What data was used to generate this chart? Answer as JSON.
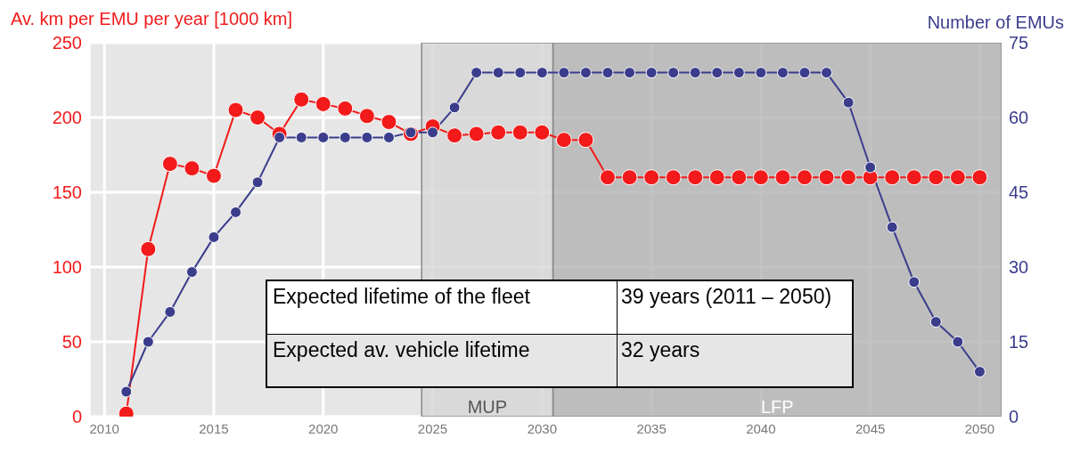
{
  "chart_data": {
    "type": "line",
    "ylabel": "Av. km per EMU per year [1000 km]",
    "y2label": "Number of EMUs",
    "x": [
      2011,
      2012,
      2013,
      2014,
      2015,
      2016,
      2017,
      2018,
      2019,
      2020,
      2021,
      2022,
      2023,
      2024,
      2025,
      2026,
      2027,
      2028,
      2029,
      2030,
      2031,
      2032,
      2033,
      2034,
      2035,
      2036,
      2037,
      2038,
      2039,
      2040,
      2041,
      2042,
      2043,
      2044,
      2045,
      2046,
      2047,
      2048,
      2049,
      2050
    ],
    "series": [
      {
        "color": "#f21a1a",
        "values": [
          2,
          112,
          169,
          166,
          161,
          205,
          200,
          189,
          212,
          209,
          206,
          201,
          197,
          189,
          194,
          188,
          189,
          190,
          190,
          190,
          185,
          185,
          160,
          160,
          160,
          160,
          160,
          160,
          160,
          160,
          160,
          160,
          160,
          160,
          160,
          160,
          160,
          160,
          160,
          160
        ]
      },
      {
        "color": "#3b3d8c",
        "axis": "y2",
        "values": [
          5,
          15,
          21,
          29,
          36,
          41,
          47,
          56,
          56,
          56,
          56,
          56,
          56,
          57,
          57,
          62,
          69,
          69,
          69,
          69,
          69,
          69,
          69,
          69,
          69,
          69,
          69,
          69,
          69,
          69,
          69,
          69,
          69,
          63,
          50,
          38,
          27,
          19,
          15,
          9
        ]
      }
    ],
    "xlim": [
      2009.3,
      2051
    ],
    "xticks": [
      2010,
      2015,
      2020,
      2025,
      2030,
      2035,
      2040,
      2045,
      2050
    ],
    "ylim": [
      0,
      250
    ],
    "yticks": [
      0,
      50,
      100,
      150,
      200,
      250
    ],
    "y2lim": [
      0,
      75
    ],
    "y2ticks": [
      0,
      15,
      30,
      45,
      60,
      75
    ],
    "bands": [
      {
        "axis": "x",
        "from": 2024.5,
        "to": 2030.5,
        "label": "MUP",
        "color": "#d6d6d6"
      },
      {
        "axis": "x",
        "from": 2030.5,
        "to": 2051,
        "label": "LFP",
        "color": "#b3b3b3"
      }
    ],
    "annotations": [
      "Expected lifetime of the fleet",
      "39 years (2011 – 2050)",
      "Expected av. vehicle lifetime",
      "32 years"
    ],
    "grid": true,
    "marker": "circle"
  }
}
